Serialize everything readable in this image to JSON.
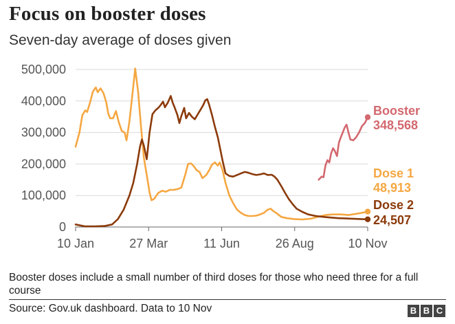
{
  "header": {
    "title": "Focus on booster doses",
    "subtitle": "Seven-day average of doses given"
  },
  "footer": {
    "note": "Booster doses include a small number of third doses for those who need three for a full course",
    "source": "Source: Gov.uk dashboard. Data to 10 Nov",
    "logo_letters": [
      "B",
      "B",
      "C"
    ]
  },
  "chart_data": {
    "type": "line",
    "title": "Focus on booster doses",
    "subtitle": "Seven-day average of doses given",
    "x_ticks": [
      "10 Jan",
      "27 Mar",
      "11 Jun",
      "26 Aug",
      "10 Nov"
    ],
    "x_tick_days": [
      0,
      76,
      152,
      228,
      304
    ],
    "y_ticks": [
      "0",
      "100,000",
      "200,000",
      "300,000",
      "400,000",
      "500,000"
    ],
    "y_tick_values": [
      0,
      100000,
      200000,
      300000,
      400000,
      500000
    ],
    "ylim": [
      0,
      500000
    ],
    "xlim": [
      0,
      304
    ],
    "grid": true,
    "series": [
      {
        "name": "Dose 1",
        "end_value_label": "48,913",
        "color": "#f5a742",
        "points": [
          [
            0,
            255000
          ],
          [
            4,
            300000
          ],
          [
            7,
            355000
          ],
          [
            10,
            370000
          ],
          [
            12,
            365000
          ],
          [
            15,
            395000
          ],
          [
            18,
            430000
          ],
          [
            21,
            443000
          ],
          [
            23,
            428000
          ],
          [
            26,
            440000
          ],
          [
            29,
            425000
          ],
          [
            32,
            395000
          ],
          [
            34,
            360000
          ],
          [
            36,
            345000
          ],
          [
            39,
            345000
          ],
          [
            42,
            368000
          ],
          [
            45,
            332000
          ],
          [
            48,
            305000
          ],
          [
            51,
            300000
          ],
          [
            53,
            275000
          ],
          [
            56,
            335000
          ],
          [
            59,
            418000
          ],
          [
            62,
            503000
          ],
          [
            65,
            430000
          ],
          [
            68,
            320000
          ],
          [
            71,
            220000
          ],
          [
            74,
            165000
          ],
          [
            77,
            110000
          ],
          [
            79,
            85000
          ],
          [
            82,
            90000
          ],
          [
            86,
            108000
          ],
          [
            90,
            115000
          ],
          [
            94,
            112000
          ],
          [
            98,
            118000
          ],
          [
            102,
            118000
          ],
          [
            106,
            120000
          ],
          [
            110,
            125000
          ],
          [
            114,
            165000
          ],
          [
            117,
            200000
          ],
          [
            120,
            202000
          ],
          [
            123,
            193000
          ],
          [
            126,
            180000
          ],
          [
            129,
            175000
          ],
          [
            132,
            155000
          ],
          [
            136,
            165000
          ],
          [
            139,
            180000
          ],
          [
            142,
            198000
          ],
          [
            145,
            205000
          ],
          [
            148,
            195000
          ],
          [
            150,
            205000
          ],
          [
            153,
            180000
          ],
          [
            156,
            140000
          ],
          [
            160,
            100000
          ],
          [
            164,
            75000
          ],
          [
            168,
            55000
          ],
          [
            172,
            45000
          ],
          [
            176,
            38000
          ],
          [
            180,
            35000
          ],
          [
            184,
            35000
          ],
          [
            188,
            36000
          ],
          [
            192,
            40000
          ],
          [
            196,
            45000
          ],
          [
            200,
            55000
          ],
          [
            203,
            58000
          ],
          [
            206,
            50000
          ],
          [
            210,
            42000
          ],
          [
            214,
            32000
          ],
          [
            220,
            28000
          ],
          [
            228,
            25000
          ],
          [
            236,
            24000
          ],
          [
            244,
            26000
          ],
          [
            252,
            32000
          ],
          [
            260,
            38000
          ],
          [
            268,
            40000
          ],
          [
            276,
            40000
          ],
          [
            284,
            38000
          ],
          [
            292,
            42000
          ],
          [
            298,
            45000
          ],
          [
            304,
            48913
          ]
        ]
      },
      {
        "name": "Dose 2",
        "end_value_label": "24,507",
        "color": "#8b3a0a",
        "points": [
          [
            0,
            8000
          ],
          [
            10,
            2000
          ],
          [
            20,
            2000
          ],
          [
            30,
            3000
          ],
          [
            38,
            8000
          ],
          [
            44,
            25000
          ],
          [
            50,
            55000
          ],
          [
            56,
            100000
          ],
          [
            60,
            140000
          ],
          [
            64,
            200000
          ],
          [
            67,
            255000
          ],
          [
            69,
            278000
          ],
          [
            71,
            258000
          ],
          [
            74,
            215000
          ],
          [
            77,
            300000
          ],
          [
            80,
            358000
          ],
          [
            83,
            370000
          ],
          [
            86,
            378000
          ],
          [
            88,
            385000
          ],
          [
            91,
            398000
          ],
          [
            93,
            380000
          ],
          [
            96,
            395000
          ],
          [
            99,
            416000
          ],
          [
            101,
            395000
          ],
          [
            103,
            380000
          ],
          [
            106,
            355000
          ],
          [
            108,
            330000
          ],
          [
            110,
            352000
          ],
          [
            113,
            378000
          ],
          [
            115,
            345000
          ],
          [
            118,
            362000
          ],
          [
            121,
            350000
          ],
          [
            124,
            342000
          ],
          [
            127,
            357000
          ],
          [
            130,
            372000
          ],
          [
            133,
            388000
          ],
          [
            135,
            402000
          ],
          [
            137,
            406000
          ],
          [
            139,
            388000
          ],
          [
            142,
            355000
          ],
          [
            145,
            318000
          ],
          [
            148,
            285000
          ],
          [
            151,
            240000
          ],
          [
            153,
            210000
          ],
          [
            156,
            170000
          ],
          [
            160,
            162000
          ],
          [
            164,
            160000
          ],
          [
            168,
            165000
          ],
          [
            172,
            170000
          ],
          [
            176,
            175000
          ],
          [
            180,
            172000
          ],
          [
            184,
            168000
          ],
          [
            188,
            165000
          ],
          [
            192,
            167000
          ],
          [
            196,
            170000
          ],
          [
            200,
            165000
          ],
          [
            204,
            166000
          ],
          [
            207,
            160000
          ],
          [
            210,
            150000
          ],
          [
            214,
            130000
          ],
          [
            218,
            108000
          ],
          [
            222,
            88000
          ],
          [
            226,
            72000
          ],
          [
            230,
            58000
          ],
          [
            236,
            48000
          ],
          [
            242,
            40000
          ],
          [
            250,
            35000
          ],
          [
            258,
            32000
          ],
          [
            266,
            30000
          ],
          [
            274,
            28000
          ],
          [
            282,
            27000
          ],
          [
            290,
            26000
          ],
          [
            298,
            25000
          ],
          [
            304,
            24507
          ]
        ]
      },
      {
        "name": "Booster",
        "end_value_label": "348,568",
        "color": "#d3686f",
        "points": [
          [
            253,
            150000
          ],
          [
            256,
            160000
          ],
          [
            258,
            158000
          ],
          [
            260,
            195000
          ],
          [
            262,
            212000
          ],
          [
            264,
            205000
          ],
          [
            266,
            235000
          ],
          [
            268,
            250000
          ],
          [
            270,
            240000
          ],
          [
            272,
            225000
          ],
          [
            274,
            268000
          ],
          [
            276,
            285000
          ],
          [
            278,
            300000
          ],
          [
            280,
            315000
          ],
          [
            282,
            325000
          ],
          [
            284,
            300000
          ],
          [
            286,
            278000
          ],
          [
            289,
            275000
          ],
          [
            292,
            285000
          ],
          [
            295,
            300000
          ],
          [
            298,
            320000
          ],
          [
            301,
            330000
          ],
          [
            304,
            348568
          ]
        ]
      }
    ]
  }
}
